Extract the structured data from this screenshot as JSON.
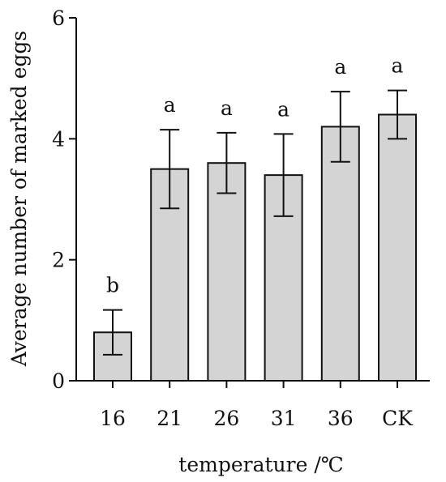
{
  "chart_data": {
    "type": "bar",
    "title": "",
    "xlabel": "temperature /℃",
    "ylabel": "Average number of marked eggs",
    "categories": [
      "16",
      "21",
      "26",
      "31",
      "36",
      "CK"
    ],
    "values": [
      0.8,
      3.5,
      3.6,
      3.4,
      4.2,
      4.4
    ],
    "errors": [
      0.37,
      0.65,
      0.5,
      0.68,
      0.58,
      0.4
    ],
    "significance": [
      "b",
      "a",
      "a",
      "a",
      "a",
      "a"
    ],
    "ylim": [
      0,
      6
    ],
    "yticks": [
      0,
      2,
      4,
      6
    ],
    "grid": false,
    "legend": "none",
    "colors": {
      "bar_fill": "#d4d4d4",
      "bar_stroke": "#111111",
      "axis": "#111111"
    }
  }
}
